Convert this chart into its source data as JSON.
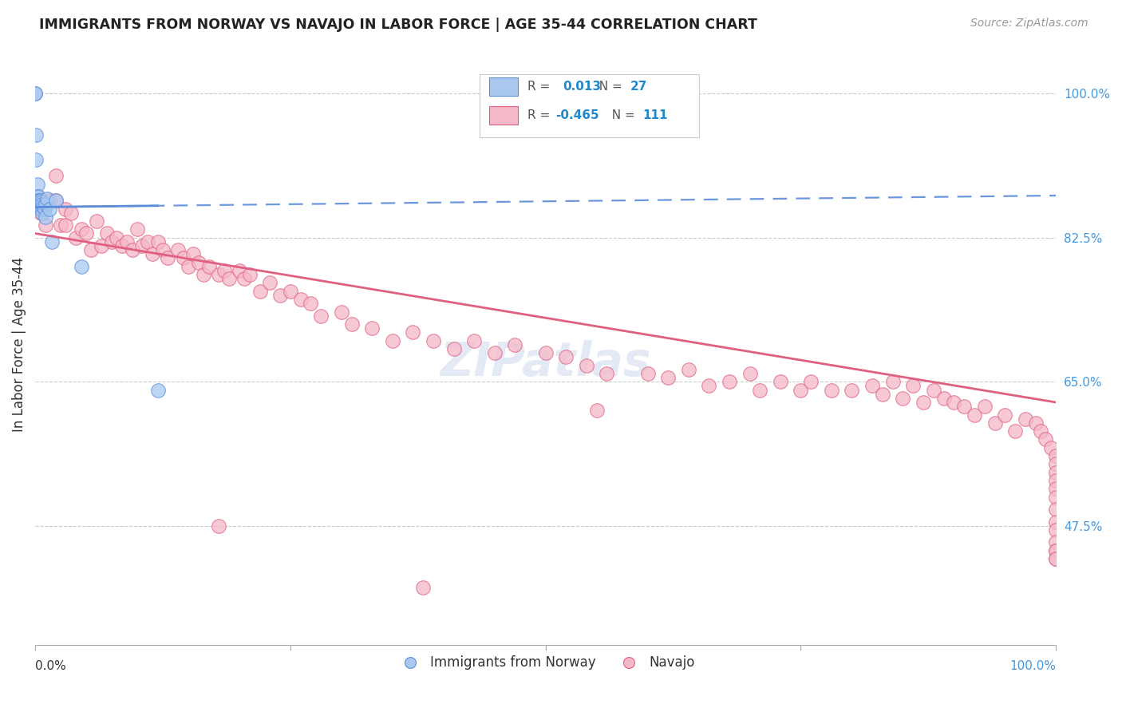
{
  "title": "IMMIGRANTS FROM NORWAY VS NAVAJO IN LABOR FORCE | AGE 35-44 CORRELATION CHART",
  "source": "Source: ZipAtlas.com",
  "ylabel": "In Labor Force | Age 35-44",
  "xlim": [
    0.0,
    1.0
  ],
  "ylim": [
    0.33,
    1.06
  ],
  "yticks": [
    0.475,
    0.65,
    0.825,
    1.0
  ],
  "ytick_labels": [
    "47.5%",
    "65.0%",
    "82.5%",
    "100.0%"
  ],
  "legend_r_norway": "0.013",
  "legend_n_norway": "27",
  "legend_r_navajo": "-0.465",
  "legend_n_navajo": "111",
  "norway_fill_color": "#a8c8f0",
  "navajo_fill_color": "#f5b8c8",
  "norway_edge_color": "#5b8dd9",
  "navajo_edge_color": "#e06080",
  "norway_line_color": "#5b8dd9",
  "navajo_line_color": "#e06080",
  "right_label_color": "#4499dd",
  "background_color": "#ffffff",
  "norway_line_x0": 0.0,
  "norway_line_x1": 1.0,
  "norway_line_y0": 0.862,
  "norway_line_y1": 0.876,
  "navajo_line_x0": 0.0,
  "navajo_line_x1": 1.0,
  "navajo_line_y0": 0.83,
  "navajo_line_y1": 0.625,
  "norway_x": [
    0.0,
    0.0,
    0.001,
    0.001,
    0.002,
    0.002,
    0.003,
    0.003,
    0.004,
    0.004,
    0.005,
    0.005,
    0.005,
    0.006,
    0.006,
    0.007,
    0.007,
    0.008,
    0.009,
    0.01,
    0.01,
    0.012,
    0.014,
    0.016,
    0.02,
    0.045,
    0.12
  ],
  "norway_y": [
    1.0,
    1.0,
    0.95,
    0.92,
    0.89,
    0.875,
    0.875,
    0.87,
    0.87,
    0.865,
    0.87,
    0.865,
    0.86,
    0.868,
    0.86,
    0.865,
    0.855,
    0.862,
    0.86,
    0.865,
    0.85,
    0.872,
    0.86,
    0.82,
    0.87,
    0.79,
    0.64
  ],
  "navajo_x": [
    0.005,
    0.01,
    0.015,
    0.02,
    0.02,
    0.025,
    0.03,
    0.03,
    0.035,
    0.04,
    0.045,
    0.05,
    0.055,
    0.06,
    0.065,
    0.07,
    0.075,
    0.08,
    0.085,
    0.09,
    0.095,
    0.1,
    0.105,
    0.11,
    0.115,
    0.12,
    0.125,
    0.13,
    0.14,
    0.145,
    0.15,
    0.155,
    0.16,
    0.165,
    0.17,
    0.18,
    0.185,
    0.19,
    0.2,
    0.205,
    0.21,
    0.22,
    0.23,
    0.24,
    0.25,
    0.26,
    0.27,
    0.28,
    0.3,
    0.31,
    0.33,
    0.35,
    0.37,
    0.39,
    0.41,
    0.43,
    0.45,
    0.47,
    0.5,
    0.52,
    0.54,
    0.56,
    0.6,
    0.62,
    0.64,
    0.66,
    0.68,
    0.7,
    0.71,
    0.73,
    0.75,
    0.76,
    0.78,
    0.8,
    0.82,
    0.83,
    0.84,
    0.85,
    0.86,
    0.87,
    0.88,
    0.89,
    0.9,
    0.91,
    0.92,
    0.93,
    0.94,
    0.95,
    0.96,
    0.97,
    0.98,
    0.985,
    0.99,
    0.995,
    1.0,
    1.0,
    1.0,
    1.0,
    1.0,
    1.0,
    1.0,
    1.0,
    1.0,
    1.0,
    1.0,
    1.0,
    1.0,
    1.0,
    0.18,
    0.38,
    0.55
  ],
  "navajo_y": [
    0.855,
    0.84,
    0.87,
    0.9,
    0.87,
    0.84,
    0.86,
    0.84,
    0.855,
    0.825,
    0.835,
    0.83,
    0.81,
    0.845,
    0.815,
    0.83,
    0.82,
    0.825,
    0.815,
    0.82,
    0.81,
    0.835,
    0.815,
    0.82,
    0.805,
    0.82,
    0.81,
    0.8,
    0.81,
    0.8,
    0.79,
    0.805,
    0.795,
    0.78,
    0.79,
    0.78,
    0.785,
    0.775,
    0.785,
    0.775,
    0.78,
    0.76,
    0.77,
    0.755,
    0.76,
    0.75,
    0.745,
    0.73,
    0.735,
    0.72,
    0.715,
    0.7,
    0.71,
    0.7,
    0.69,
    0.7,
    0.685,
    0.695,
    0.685,
    0.68,
    0.67,
    0.66,
    0.66,
    0.655,
    0.665,
    0.645,
    0.65,
    0.66,
    0.64,
    0.65,
    0.64,
    0.65,
    0.64,
    0.64,
    0.645,
    0.635,
    0.65,
    0.63,
    0.645,
    0.625,
    0.64,
    0.63,
    0.625,
    0.62,
    0.61,
    0.62,
    0.6,
    0.61,
    0.59,
    0.605,
    0.6,
    0.59,
    0.58,
    0.57,
    0.56,
    0.55,
    0.54,
    0.53,
    0.52,
    0.51,
    0.495,
    0.48,
    0.47,
    0.455,
    0.445,
    0.445,
    0.435,
    0.435,
    0.475,
    0.4,
    0.615
  ]
}
